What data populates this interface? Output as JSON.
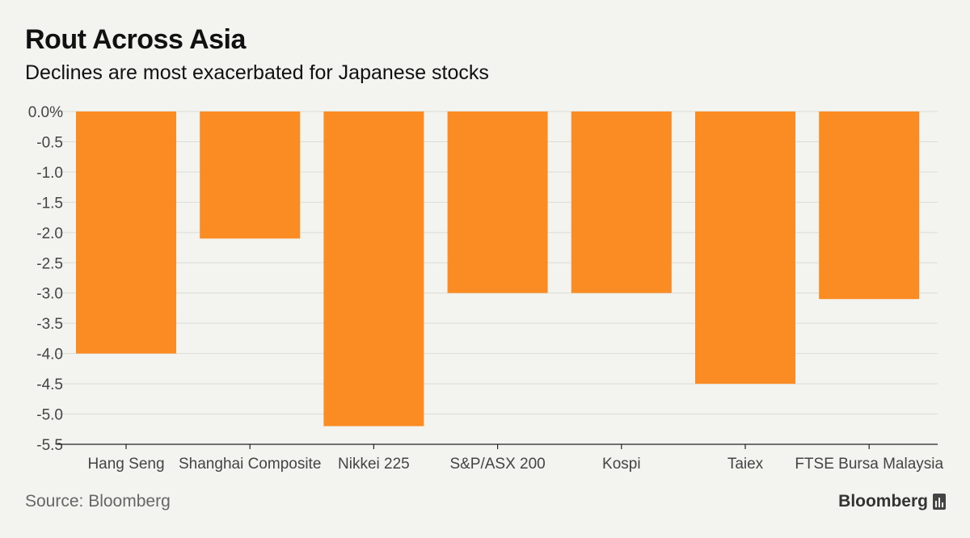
{
  "chart_data": {
    "type": "bar",
    "title": "Rout Across Asia",
    "subtitle": "Declines are most exacerbated for Japanese stocks",
    "categories": [
      "Hang Seng",
      "Shanghai Composite",
      "Nikkei 225",
      "S&P/ASX 200",
      "Kospi",
      "Taiex",
      "FTSE Bursa Malaysia"
    ],
    "values": [
      -4.0,
      -2.1,
      -5.2,
      -3.0,
      -3.0,
      -4.5,
      -3.1
    ],
    "yticks": [
      "0.0%",
      "-0.5",
      "-1.0",
      "-1.5",
      "-2.0",
      "-2.5",
      "-3.0",
      "-3.5",
      "-4.0",
      "-4.5",
      "-5.0",
      "-5.5"
    ],
    "ylim": [
      -5.5,
      0
    ],
    "xlabel": "",
    "ylabel": "",
    "grid": true,
    "bar_color": "#fb8c23"
  },
  "footer": {
    "source": "Source: Bloomberg",
    "brand": "Bloomberg"
  }
}
